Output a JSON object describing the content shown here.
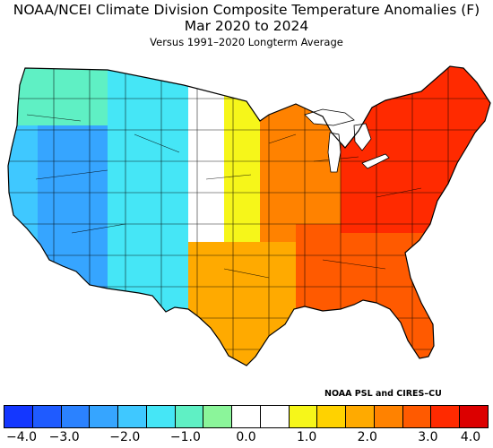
{
  "header": {
    "title_line1": "NOAA/NCEI Climate Division Composite Temperature Anomalies (F)",
    "title_line2": "Mar 2020 to 2024",
    "subtitle": "Versus 1991–2020 Longterm Average"
  },
  "credit": "NOAA PSL and CIRES–CU",
  "legend": {
    "colors": [
      "#1437ff",
      "#1f5bff",
      "#2b82ff",
      "#36a5ff",
      "#3fc8ff",
      "#45e6f6",
      "#5ff0c4",
      "#8bf59a",
      "#ffffff",
      "#ffffff",
      "#f6f61a",
      "#ffd200",
      "#ffaa00",
      "#ff8200",
      "#ff5a00",
      "#ff2a00",
      "#dc0000"
    ],
    "tick_labels": [
      "−4.0",
      "−3.0",
      "−2.0",
      "−1.0",
      "0.0",
      "1.0",
      "2.0",
      "3.0",
      "4.0"
    ]
  },
  "map": {
    "regions": [
      {
        "name": "pacific-northwest",
        "color": "#5ff0c4"
      },
      {
        "name": "california-coast",
        "color": "#3fc8ff"
      },
      {
        "name": "great-basin",
        "color": "#36a5ff"
      },
      {
        "name": "rockies",
        "color": "#45e6f6"
      },
      {
        "name": "northern-plains",
        "color": "#ffffff"
      },
      {
        "name": "central-plains",
        "color": "#f6f61a"
      },
      {
        "name": "southern-plains",
        "color": "#ffaa00"
      },
      {
        "name": "midwest",
        "color": "#ff8200"
      },
      {
        "name": "southeast",
        "color": "#ff5a00"
      },
      {
        "name": "northeast",
        "color": "#ff2a00"
      },
      {
        "name": "great-lakes",
        "color": "#ffffff"
      }
    ]
  }
}
